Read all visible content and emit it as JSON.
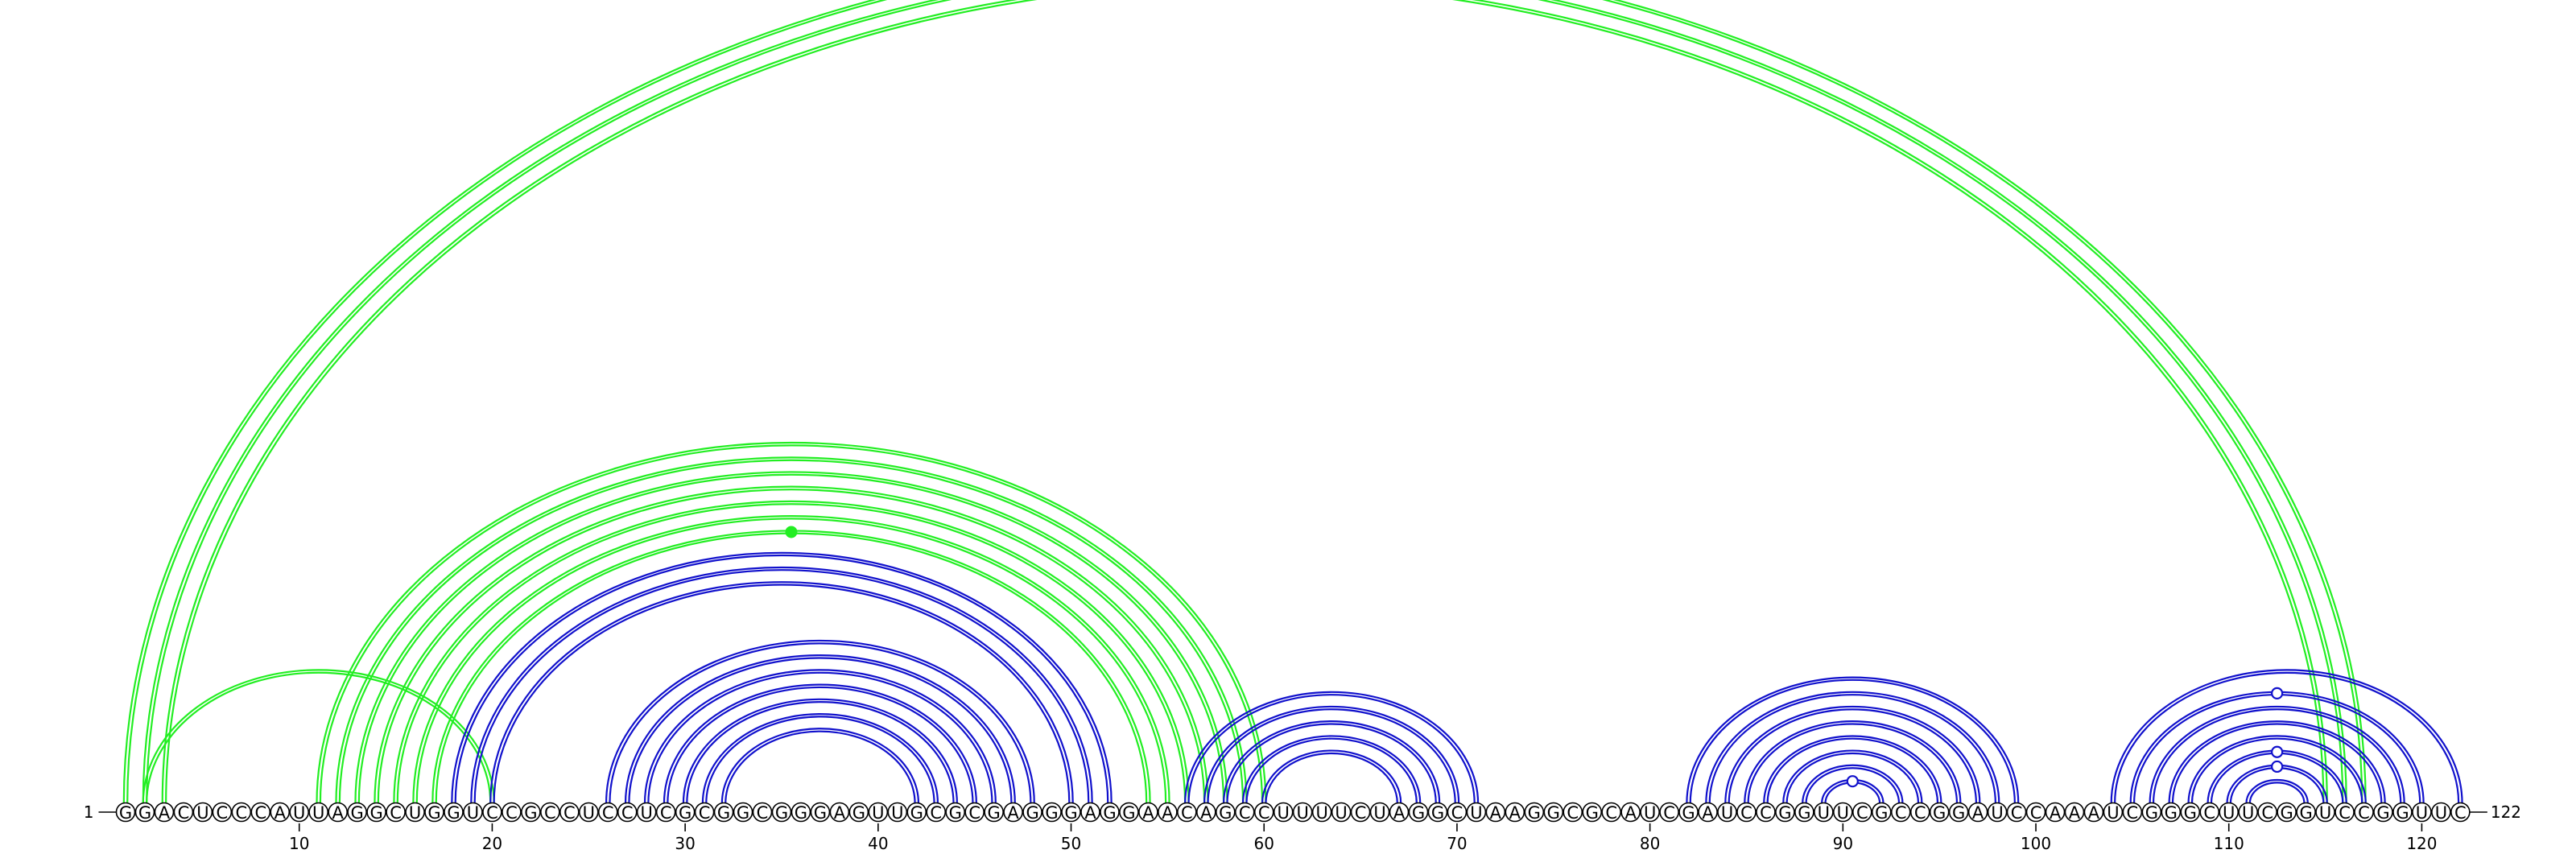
{
  "diagram": {
    "start_label": "1",
    "end_label": "122",
    "sequence": "GGACUCCCAUUAGGCUGGUCCGCCUCCUCGCGGCGGGAGUUGCGCGAGGGAGGAACAGCCUUUUCUAGGCUAAGGCGCAUCGAUCCGGUUCGCCGGAUCCAAAUCGGGCUUCGGUCCGGUUC",
    "tick_positions": [
      10,
      20,
      30,
      40,
      50,
      60,
      70,
      80,
      90,
      100,
      110,
      120
    ],
    "tick_labels": [
      "10",
      "20",
      "30",
      "40",
      "50",
      "60",
      "70",
      "80",
      "90",
      "100",
      "110",
      "120"
    ],
    "colors": {
      "green": "#22ee22",
      "blue": "#1111cc",
      "backbone": "#000000"
    },
    "green_pairs": [
      [
        1,
        117
      ],
      [
        2,
        116
      ],
      [
        3,
        115
      ],
      [
        2,
        20
      ],
      [
        11,
        60
      ],
      [
        12,
        59
      ],
      [
        13,
        58
      ],
      [
        14,
        57
      ],
      [
        15,
        56
      ],
      [
        16,
        55
      ],
      [
        17,
        54
      ]
    ],
    "blue_pairs": [
      [
        18,
        52
      ],
      [
        19,
        51
      ],
      [
        20,
        50
      ],
      [
        26,
        48
      ],
      [
        27,
        47
      ],
      [
        28,
        46
      ],
      [
        29,
        45
      ],
      [
        30,
        44
      ],
      [
        31,
        43
      ],
      [
        32,
        42
      ],
      [
        56,
        71
      ],
      [
        57,
        70
      ],
      [
        58,
        69
      ],
      [
        59,
        68
      ],
      [
        60,
        67
      ],
      [
        82,
        99
      ],
      [
        83,
        98
      ],
      [
        84,
        97
      ],
      [
        85,
        96
      ],
      [
        86,
        95
      ],
      [
        87,
        94
      ],
      [
        88,
        93
      ],
      [
        89,
        92
      ],
      [
        104,
        122
      ],
      [
        105,
        120
      ],
      [
        106,
        119
      ],
      [
        107,
        118
      ],
      [
        108,
        117
      ],
      [
        109,
        116
      ],
      [
        110,
        115
      ],
      [
        111,
        114
      ]
    ],
    "blue_markers": [
      {
        "i": 89,
        "j": 92
      },
      {
        "i": 105,
        "j": 120
      },
      {
        "i": 109,
        "j": 116
      },
      {
        "i": 110,
        "j": 115
      }
    ],
    "green_markers": [
      {
        "i": 17,
        "j": 54
      }
    ]
  }
}
